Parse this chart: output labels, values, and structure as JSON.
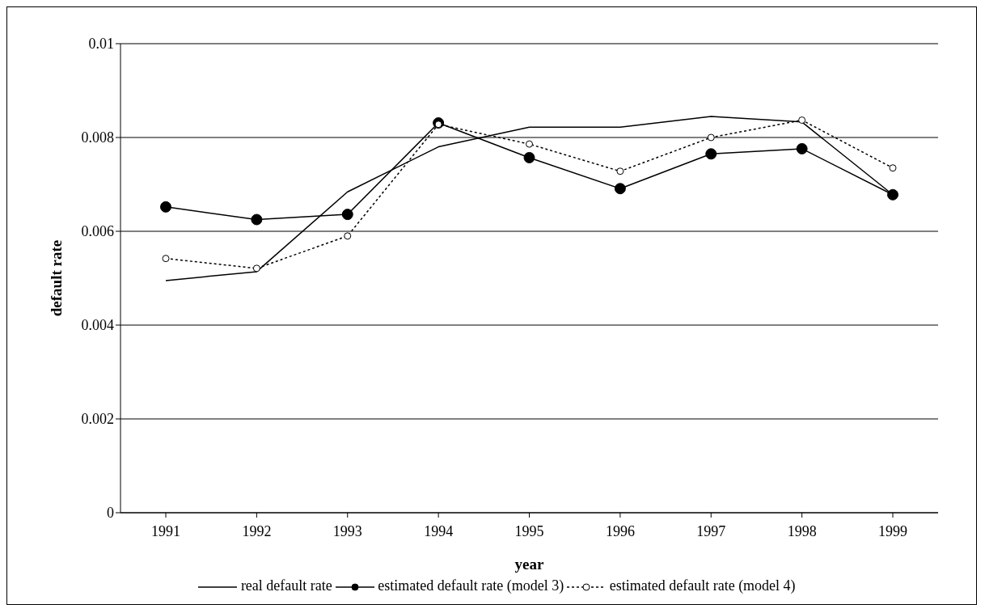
{
  "chart_data": {
    "type": "line",
    "xlabel": "year",
    "ylabel": "default rate",
    "categories": [
      "1991",
      "1992",
      "1993",
      "1994",
      "1995",
      "1996",
      "1997",
      "1998",
      "1999"
    ],
    "series": [
      {
        "name": "real default rate",
        "color": "#000000",
        "marker": "none",
        "line_style": "solid",
        "values": [
          0.00495,
          0.00514,
          0.00684,
          0.0078,
          0.00822,
          0.00822,
          0.00845,
          0.00833,
          0.00678
        ]
      },
      {
        "name": "estimated default rate (model 3)",
        "color": "#000000",
        "marker": "circle",
        "line_style": "solid",
        "values": [
          0.00652,
          0.00625,
          0.00636,
          0.00831,
          0.00757,
          0.00691,
          0.00765,
          0.00776,
          0.00678
        ]
      },
      {
        "name": "estimated default rate (model 4)",
        "color": "#000000",
        "marker": "circle",
        "line_style": "dotted",
        "values": [
          0.00542,
          0.00521,
          0.0059,
          0.00828,
          0.00786,
          0.00728,
          0.008,
          0.00837,
          0.00735
        ]
      }
    ],
    "ylim": [
      0,
      0.01
    ],
    "yticks": [
      0,
      0.002,
      0.004,
      0.006,
      0.008,
      0.01
    ],
    "grid": "y",
    "legend": "bottom"
  }
}
